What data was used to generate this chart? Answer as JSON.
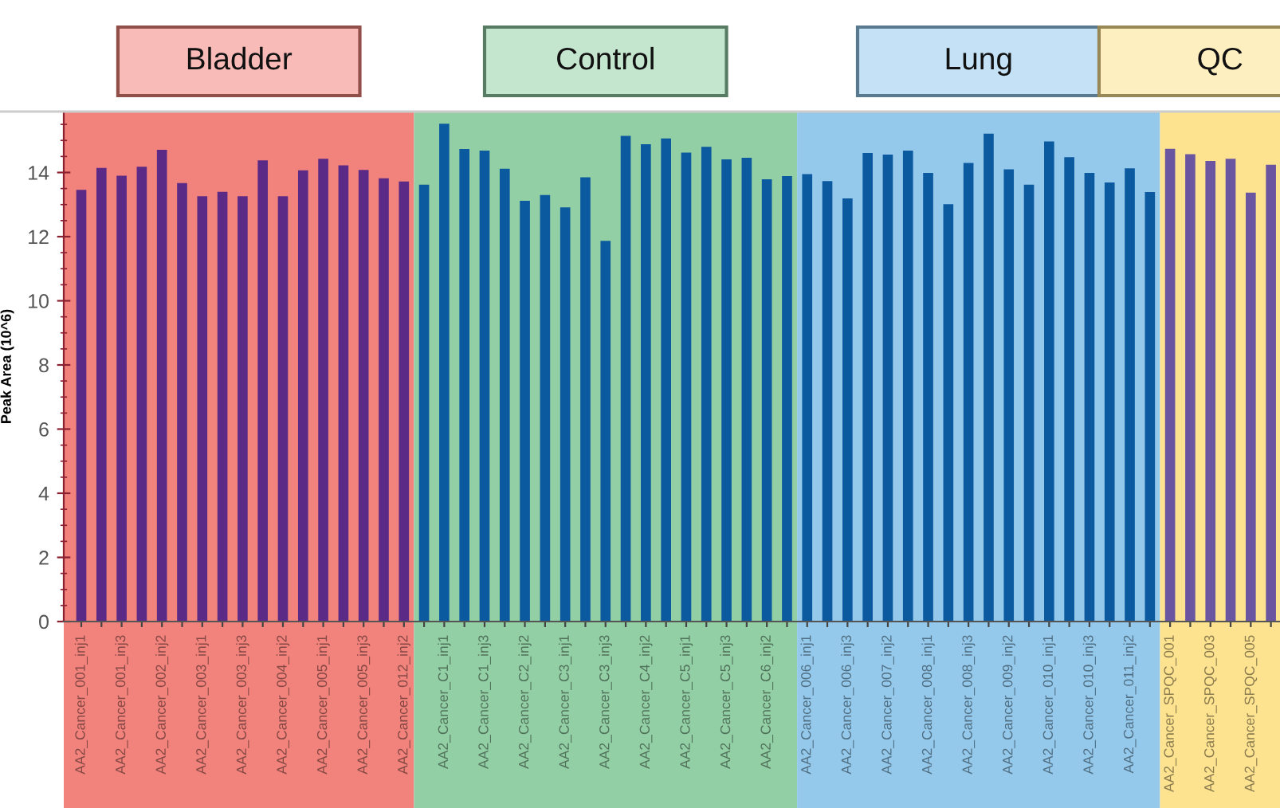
{
  "chart_data": {
    "type": "bar",
    "ylabel": "Peak Area (10^6)",
    "categories": [
      "AA2_Cancer_001_inj1",
      null,
      "AA2_Cancer_001_inj3",
      null,
      "AA2_Cancer_002_inj2",
      null,
      "AA2_Cancer_003_inj1",
      null,
      "AA2_Cancer_003_inj3",
      null,
      "AA2_Cancer_004_inj2",
      null,
      "AA2_Cancer_005_inj1",
      null,
      "AA2_Cancer_005_inj3",
      null,
      "AA2_Cancer_012_inj2",
      null,
      "AA2_Cancer_C1_inj1",
      null,
      "AA2_Cancer_C1_inj3",
      null,
      "AA2_Cancer_C2_inj2",
      null,
      "AA2_Cancer_C3_inj1",
      null,
      "AA2_Cancer_C3_inj3",
      null,
      "AA2_Cancer_C4_inj2",
      null,
      "AA2_Cancer_C5_inj1",
      null,
      "AA2_Cancer_C5_inj3",
      null,
      "AA2_Cancer_C6_inj2",
      null,
      "AA2_Cancer_006_inj1",
      null,
      "AA2_Cancer_006_inj3",
      null,
      "AA2_Cancer_007_inj2",
      null,
      "AA2_Cancer_008_inj1",
      null,
      "AA2_Cancer_008_inj3",
      null,
      "AA2_Cancer_009_inj2",
      null,
      "AA2_Cancer_010_inj1",
      null,
      "AA2_Cancer_010_inj3",
      null,
      "AA2_Cancer_011_inj2",
      null,
      "AA2_Cancer_SPQC_001",
      null,
      "AA2_Cancer_SPQC_003",
      null,
      "AA2_Cancer_SPQC_005",
      null
    ],
    "values": [
      13.46,
      14.14,
      13.9,
      14.18,
      14.71,
      13.67,
      13.26,
      13.4,
      13.26,
      14.38,
      13.26,
      14.07,
      14.43,
      14.22,
      14.08,
      13.82,
      13.72,
      13.62,
      15.52,
      14.73,
      14.68,
      14.12,
      13.12,
      13.3,
      12.91,
      13.85,
      11.87,
      15.14,
      14.88,
      15.06,
      14.62,
      14.8,
      14.41,
      14.46,
      13.79,
      13.89,
      13.95,
      13.73,
      13.19,
      14.61,
      14.56,
      14.68,
      13.99,
      13.01,
      14.3,
      15.21,
      14.1,
      13.62,
      14.97,
      14.48,
      13.99,
      13.69,
      14.13,
      13.39,
      14.74,
      14.57,
      14.36,
      14.43,
      13.37,
      14.24
    ],
    "colors": [
      "#5b2a86",
      "#5b2a86",
      "#5b2a86",
      "#5b2a86",
      "#5b2a86",
      "#5b2a86",
      "#5b2a86",
      "#5b2a86",
      "#5b2a86",
      "#5b2a86",
      "#5b2a86",
      "#5b2a86",
      "#5b2a86",
      "#5b2a86",
      "#5b2a86",
      "#5b2a86",
      "#5b2a86",
      "#0b5aa0",
      "#0b5aa0",
      "#0b5aa0",
      "#0b5aa0",
      "#0b5aa0",
      "#0b5aa0",
      "#0b5aa0",
      "#0b5aa0",
      "#0b5aa0",
      "#0b5aa0",
      "#0b5aa0",
      "#0b5aa0",
      "#0b5aa0",
      "#0b5aa0",
      "#0b5aa0",
      "#0b5aa0",
      "#0b5aa0",
      "#0b5aa0",
      "#0b5aa0",
      "#0b5aa0",
      "#0b5aa0",
      "#0b5aa0",
      "#0b5aa0",
      "#0b5aa0",
      "#0b5aa0",
      "#0b5aa0",
      "#0b5aa0",
      "#0b5aa0",
      "#0b5aa0",
      "#0b5aa0",
      "#0b5aa0",
      "#0b5aa0",
      "#0b5aa0",
      "#0b5aa0",
      "#0b5aa0",
      "#0b5aa0",
      "#0b5aa0",
      "#6a55a0",
      "#6a55a0",
      "#6a55a0",
      "#6a55a0",
      "#6a55a0",
      "#6a55a0"
    ],
    "ylim": [
      0,
      15.9
    ],
    "yticks": [
      0,
      2,
      4,
      6,
      8,
      10,
      12,
      14
    ],
    "grid": false,
    "annotations": [
      "Bladder",
      "Control",
      "Lung",
      "QC"
    ]
  }
}
